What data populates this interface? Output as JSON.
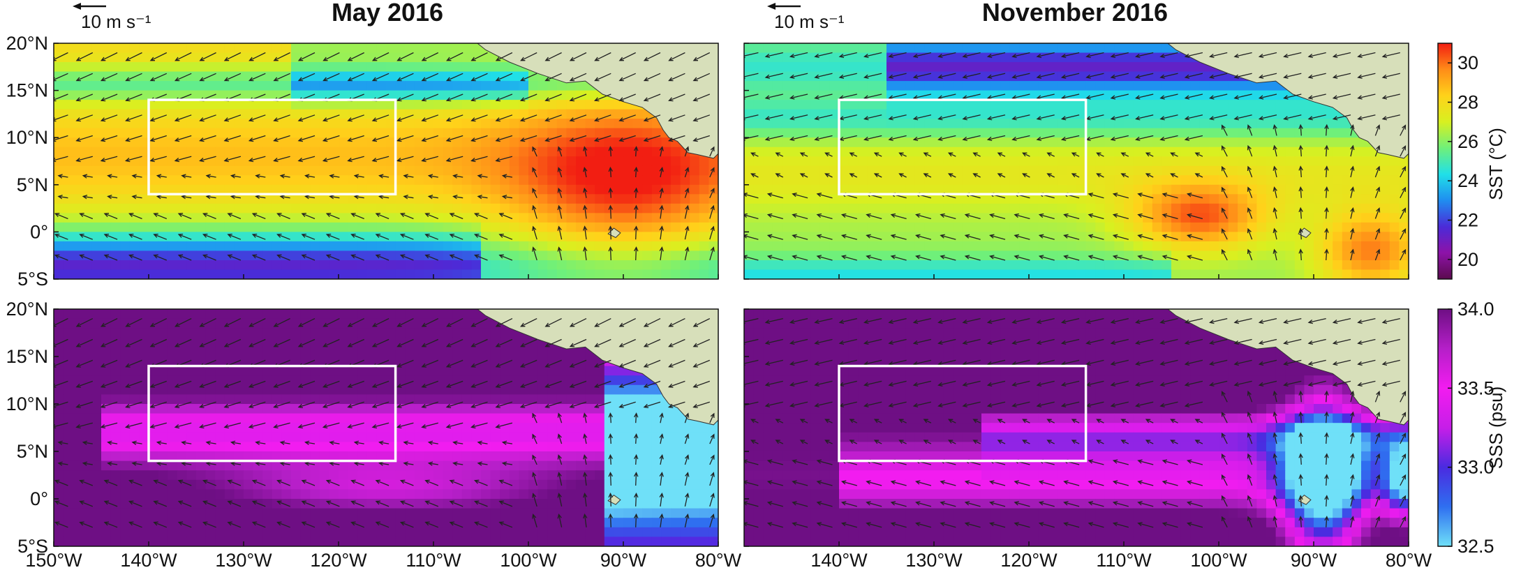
{
  "chart_data": {
    "type": "heatmap",
    "columns": [
      {
        "title": "May 2016",
        "scale_label": "10 m s⁻¹"
      },
      {
        "title": "November 2016",
        "scale_label": "10 m s⁻¹"
      }
    ],
    "lat_ticks": [
      "20°N",
      "15°N",
      "10°N",
      "5°N",
      "0°",
      "5°S"
    ],
    "lat_values": [
      20,
      15,
      10,
      5,
      0,
      -5
    ],
    "lon_ticks_left": [
      "150°W",
      "140°W",
      "130°W",
      "120°W",
      "110°W",
      "100°W",
      "90°W",
      "80°W"
    ],
    "lon_ticks_right": [
      "140°W",
      "130°W",
      "120°W",
      "110°W",
      "100°W",
      "90°W",
      "80°W"
    ],
    "lon_values_left": [
      -150,
      -140,
      -130,
      -120,
      -110,
      -100,
      -90,
      -80
    ],
    "lon_values_right": [
      -140,
      -130,
      -120,
      -110,
      -100,
      -90,
      -80
    ],
    "xlim": [
      -150,
      -80
    ],
    "ylim": [
      -5,
      20
    ],
    "box_region": {
      "lon": [
        -140,
        -114
      ],
      "lat": [
        4,
        14
      ]
    },
    "sst_colorbar": {
      "label": "SST (°C)",
      "range": [
        19,
        31
      ],
      "ticks": [
        "30",
        "28",
        "26",
        "24",
        "22",
        "20"
      ],
      "tick_values": [
        30,
        28,
        26,
        24,
        22,
        20
      ],
      "colors": [
        "#5b0a4e",
        "#8d12a8",
        "#4b2bd8",
        "#1f8df0",
        "#20e0e8",
        "#6ff07a",
        "#d8f020",
        "#ffd21a",
        "#ff8c18",
        "#f21e12"
      ]
    },
    "sss_colorbar": {
      "label": "SSS (psu)",
      "range": [
        32.5,
        34.0
      ],
      "ticks": [
        "34.0",
        "33.5",
        "33.0",
        "32.5"
      ],
      "tick_values": [
        34.0,
        33.5,
        33.0,
        32.5
      ],
      "colors": [
        "#6fe0f8",
        "#2f6ff0",
        "#4a2be0",
        "#c61ee8",
        "#f21cf0",
        "#b51fc8",
        "#6e0f84"
      ]
    },
    "land_color": "#d7dfba",
    "box_color": "#ffffff"
  }
}
